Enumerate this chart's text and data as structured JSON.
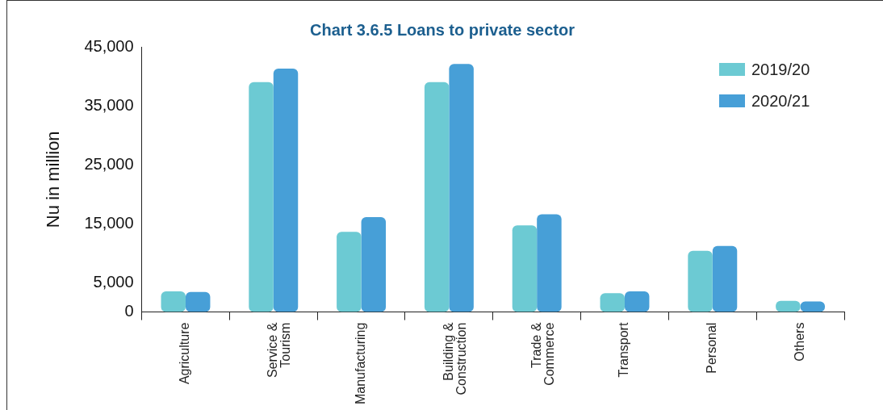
{
  "chart_data": {
    "type": "bar",
    "title": "Chart 3.6.5 Loans to private sector",
    "ylabel": "Nu in million",
    "categories": [
      "Agriculture",
      "Service & Tourism",
      "Manufacturing",
      "Building & Construction",
      "Trade & Commerce",
      "Transport",
      "Personal",
      "Others"
    ],
    "series": [
      {
        "name": "2019/20",
        "color": "#6ccad3",
        "values": [
          3500,
          39000,
          13600,
          39000,
          14700,
          3200,
          10400,
          1900
        ]
      },
      {
        "name": "2020/21",
        "color": "#479fd7",
        "values": [
          3400,
          41300,
          16100,
          42100,
          16600,
          3500,
          11200,
          1800
        ]
      }
    ],
    "ylim": [
      0,
      45000
    ],
    "yticks": [
      0,
      {
        "value": 5000,
        "label": "5,000"
      },
      {
        "value": 15000,
        "label": "15,000"
      },
      {
        "value": 25000,
        "label": "25,000"
      },
      {
        "value": 35000,
        "label": "35,000"
      },
      {
        "value": 45000,
        "label": "45,000"
      }
    ],
    "grid": false,
    "legend": "top right"
  }
}
